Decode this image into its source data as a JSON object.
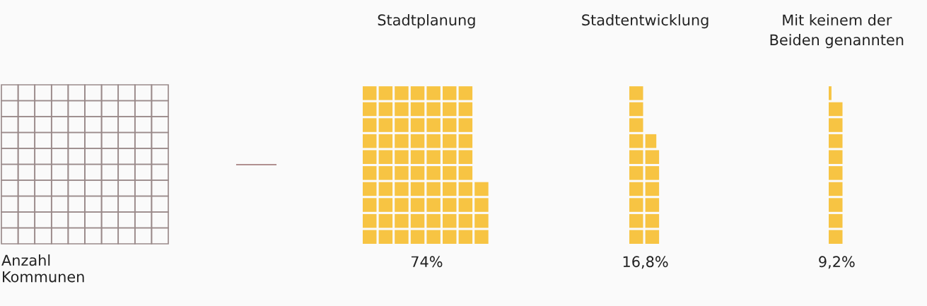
{
  "chart_data": {
    "type": "other",
    "categories": [
      "Stadtplanung",
      "Stadtentwicklung",
      "Mit keinem der\nBeiden genannten"
    ],
    "values": [
      74,
      16.8,
      9.2
    ],
    "value_labels": [
      "74%",
      "16,8%",
      "9,2%"
    ],
    "colors": [
      "#f7c443",
      "#f7c443",
      "#f7c443"
    ],
    "annotations": [
      "Anzahl\nKommunen"
    ]
  }
}
